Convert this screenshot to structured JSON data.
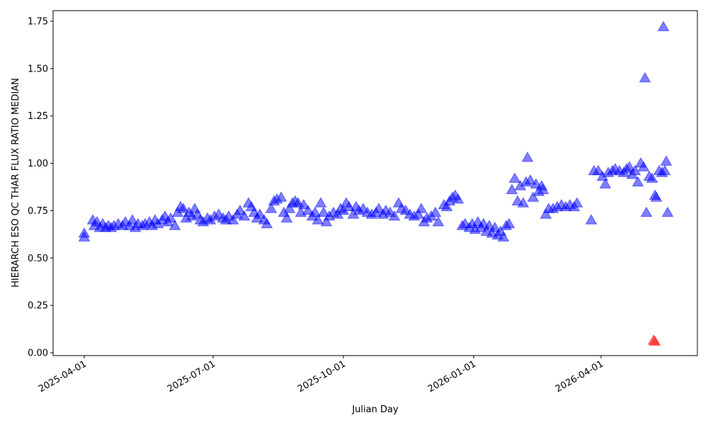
{
  "chart_data": {
    "type": "scatter",
    "xlabel": "Julian Day",
    "ylabel": "HIERARCH ESO QC THAR FLUX RATIO MEDIAN",
    "xlim": [
      "2025-03-10",
      "2026-06-08"
    ],
    "xticks": [
      "2025-04-01",
      "2025-07-01",
      "2025-10-01",
      "2026-01-01",
      "2026-04-01"
    ],
    "ylim": [
      -0.015,
      1.806
    ],
    "yticks": [
      {
        "value": 0,
        "label": "0.00"
      },
      {
        "value": 0.25,
        "label": "0.25"
      },
      {
        "value": 0.5,
        "label": "0.50"
      },
      {
        "value": 0.75,
        "label": "0.75"
      },
      {
        "value": 1,
        "label": "1.00"
      },
      {
        "value": 1.25,
        "label": "1.25"
      },
      {
        "value": 1.5,
        "label": "1.50"
      },
      {
        "value": 1.75,
        "label": "1.75"
      }
    ],
    "series": [
      {
        "color": "blue",
        "x": [
          "2025-04-01",
          "2025-04-01",
          "2025-04-07",
          "2025-04-08",
          "2025-04-10",
          "2025-04-12",
          "2025-04-14",
          "2025-04-16",
          "2025-04-18",
          "2025-04-20",
          "2025-04-22",
          "2025-04-25",
          "2025-04-28",
          "2025-04-30",
          "2025-05-03",
          "2025-05-05",
          "2025-05-07",
          "2025-05-09",
          "2025-05-12",
          "2025-05-14",
          "2025-05-17",
          "2025-05-19",
          "2025-05-21",
          "2025-05-23",
          "2025-05-26",
          "2025-05-28",
          "2025-05-30",
          "2025-06-01",
          "2025-06-04",
          "2025-06-06",
          "2025-06-08",
          "2025-06-10",
          "2025-06-12",
          "2025-06-14",
          "2025-06-16",
          "2025-06-18",
          "2025-06-20",
          "2025-06-22",
          "2025-06-24",
          "2025-06-27",
          "2025-06-29",
          "2025-07-02",
          "2025-07-05",
          "2025-07-08",
          "2025-07-10",
          "2025-07-12",
          "2025-07-15",
          "2025-07-18",
          "2025-07-20",
          "2025-07-23",
          "2025-07-26",
          "2025-07-28",
          "2025-07-30",
          "2025-08-01",
          "2025-08-03",
          "2025-08-06",
          "2025-08-08",
          "2025-08-11",
          "2025-08-13",
          "2025-08-15",
          "2025-08-18",
          "2025-08-20",
          "2025-08-22",
          "2025-08-24",
          "2025-08-26",
          "2025-08-28",
          "2025-08-30",
          "2025-09-01",
          "2025-09-03",
          "2025-09-06",
          "2025-09-09",
          "2025-09-11",
          "2025-09-13",
          "2025-09-15",
          "2025-09-17",
          "2025-09-19",
          "2025-09-21",
          "2025-09-24",
          "2025-09-27",
          "2025-09-29",
          "2025-10-01",
          "2025-10-03",
          "2025-10-05",
          "2025-10-08",
          "2025-10-10",
          "2025-10-12",
          "2025-10-15",
          "2025-10-18",
          "2025-10-21",
          "2025-10-24",
          "2025-10-26",
          "2025-10-29",
          "2025-10-31",
          "2025-11-03",
          "2025-11-06",
          "2025-11-09",
          "2025-11-11",
          "2025-11-14",
          "2025-11-17",
          "2025-11-20",
          "2025-11-23",
          "2025-11-25",
          "2025-11-27",
          "2025-11-29",
          "2025-12-02",
          "2025-12-05",
          "2025-12-07",
          "2025-12-11",
          "2025-12-13",
          "2025-12-15",
          "2025-12-17",
          "2025-12-19",
          "2025-12-21",
          "2025-12-24",
          "2025-12-26",
          "2025-12-29",
          "2025-12-31",
          "2026-01-02",
          "2026-01-04",
          "2026-01-06",
          "2026-01-08",
          "2026-01-10",
          "2026-01-12",
          "2026-01-14",
          "2026-01-16",
          "2026-01-18",
          "2026-01-20",
          "2026-01-22",
          "2026-01-24",
          "2026-01-26",
          "2026-01-28",
          "2026-01-30",
          "2026-02-01",
          "2026-02-03",
          "2026-02-05",
          "2026-02-07",
          "2026-02-08",
          "2026-02-10",
          "2026-02-12",
          "2026-02-14",
          "2026-02-16",
          "2026-02-18",
          "2026-02-19",
          "2026-02-21",
          "2026-02-23",
          "2026-02-26",
          "2026-03-01",
          "2026-03-04",
          "2026-03-07",
          "2026-03-10",
          "2026-03-13",
          "2026-03-15",
          "2026-03-25",
          "2026-03-27",
          "2026-03-30",
          "2026-04-02",
          "2026-04-04",
          "2026-04-06",
          "2026-04-09",
          "2026-04-11",
          "2026-04-14",
          "2026-04-17",
          "2026-04-19",
          "2026-04-21",
          "2026-04-23",
          "2026-04-25",
          "2026-04-27",
          "2026-04-29",
          "2026-05-01",
          "2026-05-02",
          "2026-05-03",
          "2026-05-05",
          "2026-05-07",
          "2026-05-09",
          "2026-05-10",
          "2026-05-12",
          "2026-05-14",
          "2026-05-15",
          "2026-05-16",
          "2026-05-17",
          "2026-05-18"
        ],
        "values": [
          0.63,
          0.61,
          0.7,
          0.67,
          0.69,
          0.66,
          0.68,
          0.66,
          0.67,
          0.66,
          0.67,
          0.68,
          0.67,
          0.69,
          0.67,
          0.7,
          0.66,
          0.68,
          0.67,
          0.68,
          0.69,
          0.67,
          0.7,
          0.68,
          0.7,
          0.72,
          0.69,
          0.71,
          0.67,
          0.74,
          0.77,
          0.76,
          0.71,
          0.74,
          0.72,
          0.76,
          0.73,
          0.7,
          0.69,
          0.71,
          0.7,
          0.72,
          0.73,
          0.71,
          0.7,
          0.72,
          0.7,
          0.73,
          0.75,
          0.72,
          0.79,
          0.77,
          0.74,
          0.71,
          0.73,
          0.7,
          0.68,
          0.76,
          0.8,
          0.81,
          0.82,
          0.74,
          0.71,
          0.76,
          0.79,
          0.8,
          0.79,
          0.74,
          0.78,
          0.75,
          0.72,
          0.74,
          0.7,
          0.79,
          0.74,
          0.69,
          0.72,
          0.74,
          0.73,
          0.76,
          0.75,
          0.79,
          0.77,
          0.73,
          0.77,
          0.75,
          0.76,
          0.74,
          0.73,
          0.74,
          0.76,
          0.73,
          0.75,
          0.74,
          0.72,
          0.79,
          0.76,
          0.75,
          0.73,
          0.72,
          0.73,
          0.76,
          0.69,
          0.71,
          0.72,
          0.74,
          0.69,
          0.78,
          0.77,
          0.8,
          0.82,
          0.83,
          0.81,
          0.67,
          0.68,
          0.66,
          0.68,
          0.65,
          0.69,
          0.66,
          0.68,
          0.64,
          0.67,
          0.63,
          0.66,
          0.62,
          0.64,
          0.61,
          0.67,
          0.68,
          0.86,
          0.92,
          0.8,
          0.88,
          0.79,
          0.9,
          1.03,
          0.91,
          0.82,
          0.89,
          0.85,
          0.88,
          0.86,
          0.73,
          0.76,
          0.76,
          0.77,
          0.78,
          0.77,
          0.78,
          0.77,
          0.79,
          0.7,
          0.96,
          0.96,
          0.93,
          0.89,
          0.95,
          0.96,
          0.97,
          0.96,
          0.95,
          0.97,
          0.98,
          0.94,
          0.96,
          0.9,
          1.0,
          0.98,
          1.45,
          0.74,
          0.93,
          0.92,
          0.83,
          0.82,
          0.96,
          0.95,
          1.72,
          0.96,
          1.01,
          0.74
        ]
      },
      {
        "color": "red",
        "x": [
          "2026-05-08",
          "2026-05-09"
        ],
        "values": [
          0.065,
          0.06
        ]
      }
    ]
  }
}
